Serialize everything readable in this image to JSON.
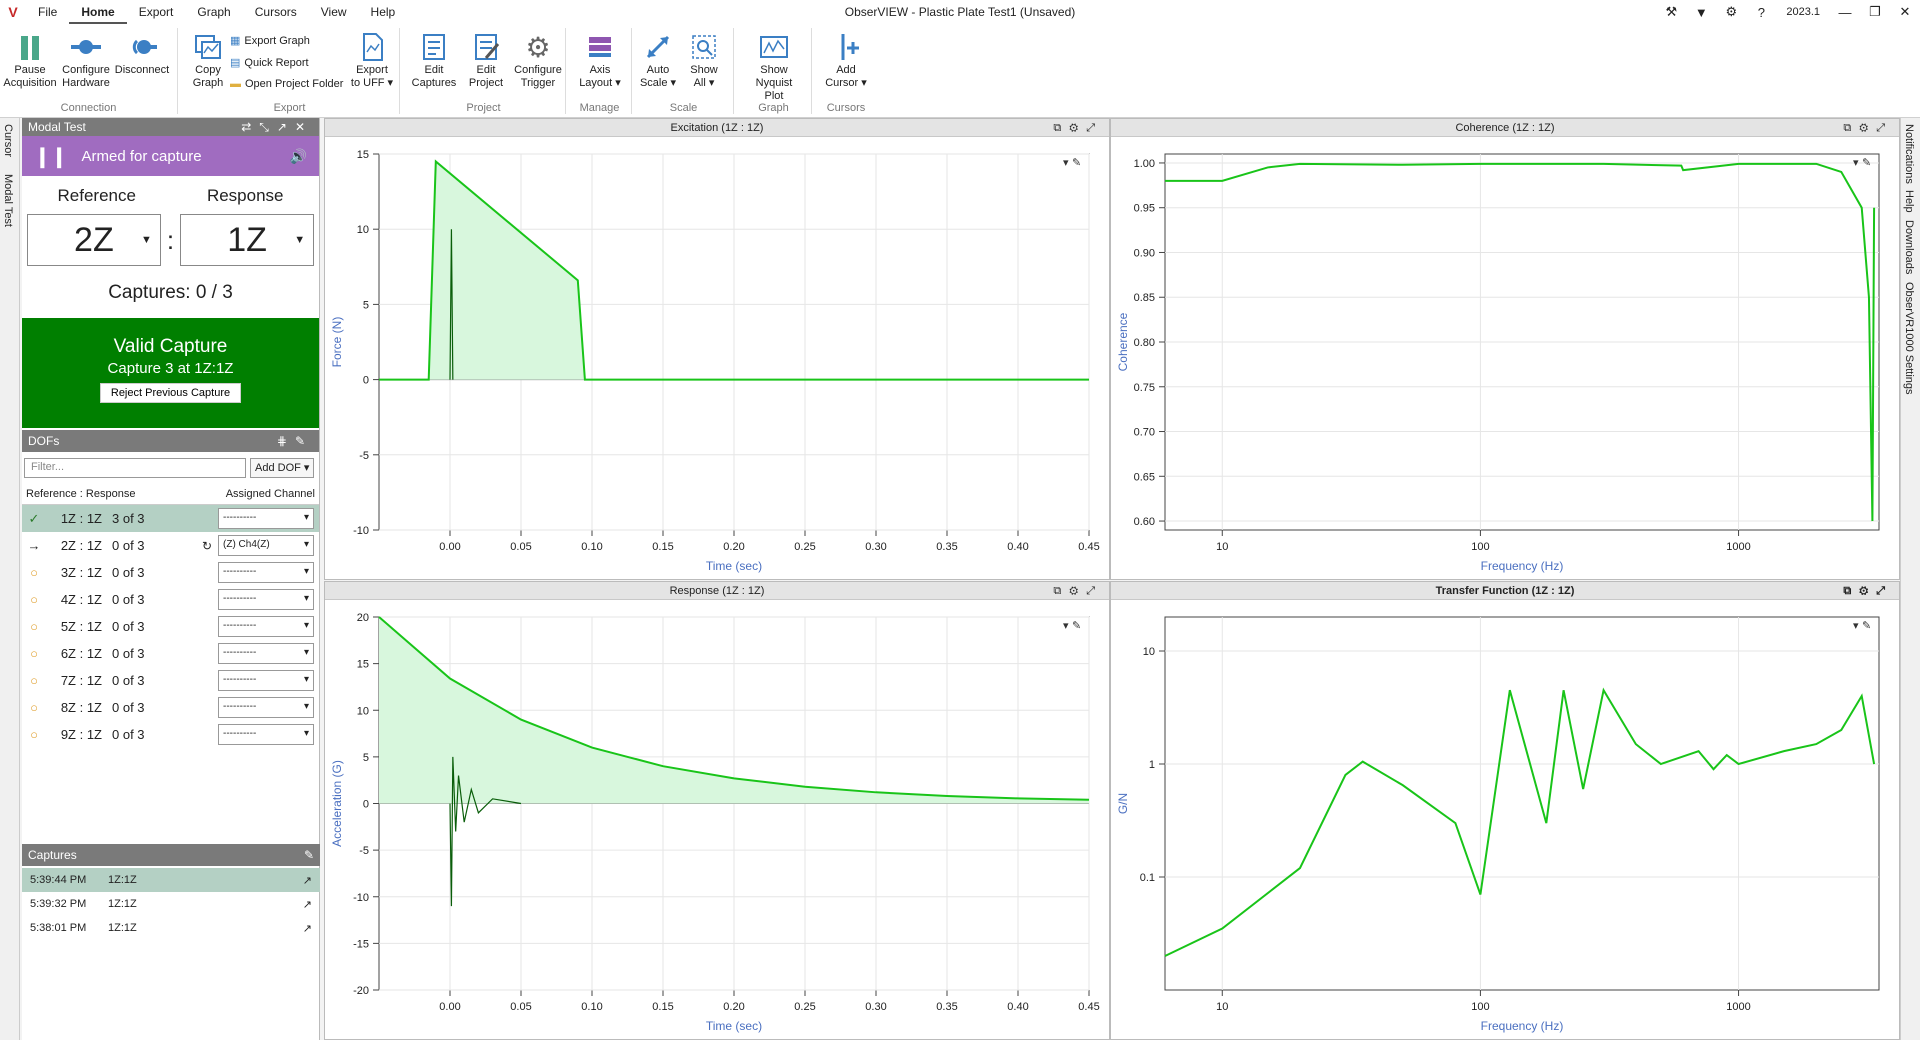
{
  "titlebar": {
    "logo": "V",
    "menus": [
      "File",
      "Home",
      "Export",
      "Graph",
      "Cursors",
      "View",
      "Help"
    ],
    "active_menu": "Home",
    "title": "ObserVIEW - Plastic Plate Test1 (Unsaved)",
    "version": "2023.1"
  },
  "ribbon": {
    "groups": [
      {
        "title": "Connection",
        "buttons": [
          "Pause\nAcquisition",
          "Configure\nHardware",
          "Disconnect"
        ]
      },
      {
        "title": "Export",
        "buttons": [
          "Copy\nGraph"
        ],
        "small": [
          "Export Graph",
          "Quick Report",
          "Open Project Folder"
        ],
        "extra": "Export\nto UFF ▾"
      },
      {
        "title": "Project",
        "buttons": [
          "Edit\nCaptures",
          "Edit\nProject",
          "Configure\nTrigger"
        ]
      },
      {
        "title": "Manage",
        "buttons": [
          "Axis\nLayout ▾"
        ]
      },
      {
        "title": "Scale",
        "buttons": [
          "Auto\nScale ▾",
          "Show\nAll ▾"
        ]
      },
      {
        "title": "Graph",
        "buttons": [
          "Show\nNyquist Plot"
        ]
      },
      {
        "title": "Cursors",
        "buttons": [
          "Add\nCursor ▾"
        ]
      }
    ]
  },
  "left_tabs": [
    "Cursor",
    "Modal Test"
  ],
  "right_tabs": [
    "Notifications",
    "Help",
    "Downloads",
    "ObserVR1000 Settings"
  ],
  "modal": {
    "title": "Modal Test",
    "armed": "Armed for capture",
    "reference_label": "Reference",
    "response_label": "Response",
    "reference": "2Z",
    "response": "1Z",
    "captures": "Captures: 0 / 3",
    "valid_title": "Valid Capture",
    "valid_sub": "Capture 3 at 1Z:1Z",
    "reject": "Reject Previous Capture"
  },
  "dofs": {
    "title": "DOFs",
    "filter_placeholder": "Filter...",
    "add_dof": "Add DOF ▾",
    "col_ref": "Reference : Response",
    "col_ch": "Assigned Channel",
    "rows": [
      {
        "icon": "✓",
        "name": "1Z : 1Z",
        "count": "3 of 3",
        "channel": "----------",
        "selected": true
      },
      {
        "icon": "→",
        "name": "2Z : 1Z",
        "count": "0 of 3",
        "channel": "(Z) Ch4(Z)",
        "rotate": true
      },
      {
        "icon": "○",
        "name": "3Z : 1Z",
        "count": "0 of 3",
        "channel": "----------"
      },
      {
        "icon": "○",
        "name": "4Z : 1Z",
        "count": "0 of 3",
        "channel": "----------"
      },
      {
        "icon": "○",
        "name": "5Z : 1Z",
        "count": "0 of 3",
        "channel": "----------"
      },
      {
        "icon": "○",
        "name": "6Z : 1Z",
        "count": "0 of 3",
        "channel": "----------"
      },
      {
        "icon": "○",
        "name": "7Z : 1Z",
        "count": "0 of 3",
        "channel": "----------"
      },
      {
        "icon": "○",
        "name": "8Z : 1Z",
        "count": "0 of 3",
        "channel": "----------"
      },
      {
        "icon": "○",
        "name": "9Z : 1Z",
        "count": "0 of 3",
        "channel": "----------"
      }
    ]
  },
  "captures_list": {
    "title": "Captures",
    "rows": [
      {
        "time": "5:39:44 PM",
        "name": "1Z:1Z",
        "selected": true
      },
      {
        "time": "5:39:32 PM",
        "name": "1Z:1Z"
      },
      {
        "time": "5:38:01 PM",
        "name": "1Z:1Z"
      }
    ]
  },
  "chart_data": [
    {
      "type": "line",
      "title": "Excitation (1Z : 1Z)",
      "xlabel": "Time (sec)",
      "ylabel": "Force (N)",
      "xlim": [
        -0.05,
        0.45
      ],
      "ylim": [
        -10,
        15
      ],
      "xticks": [
        "0.00",
        "0.05",
        "0.10",
        "0.15",
        "0.20",
        "0.25",
        "0.30",
        "0.35",
        "0.40",
        "0.45"
      ],
      "yticks": [
        "15",
        "10",
        "5",
        "0",
        "-5",
        "-10"
      ],
      "series": [
        {
          "x": [
            -0.05,
            -0.015,
            -0.01,
            0.09,
            0.095,
            0.45
          ],
          "y": [
            0,
            0,
            14.5,
            6.6,
            0,
            0
          ],
          "fill": true
        },
        {
          "x": [
            0.0,
            0.001,
            0.002
          ],
          "y": [
            0,
            10,
            0
          ]
        }
      ]
    },
    {
      "type": "line",
      "title": "Coherence (1Z : 1Z)",
      "xlabel": "Frequency (Hz)",
      "ylabel": "Coherence",
      "xscale": "log",
      "xlim": [
        6,
        3500
      ],
      "ylim": [
        0.59,
        1.01
      ],
      "xticks": [
        "10",
        "100",
        "1000"
      ],
      "yticks": [
        "1.00",
        "0.95",
        "0.90",
        "0.85",
        "0.80",
        "0.75",
        "0.70",
        "0.65",
        "0.60"
      ],
      "series": [
        {
          "x": [
            6,
            10,
            15,
            20,
            50,
            100,
            300,
            600,
            610,
            1000,
            2000,
            2500,
            3000,
            3200,
            3300,
            3350
          ],
          "y": [
            0.98,
            0.98,
            0.995,
            0.999,
            0.998,
            0.999,
            0.999,
            0.997,
            0.992,
            0.999,
            0.999,
            0.99,
            0.95,
            0.85,
            0.6,
            0.95
          ]
        }
      ]
    },
    {
      "type": "line",
      "title": "Response (1Z : 1Z)",
      "xlabel": "Time (sec)",
      "ylabel": "Acceleration (G)",
      "xlim": [
        -0.05,
        0.45
      ],
      "ylim": [
        -20,
        20
      ],
      "xticks": [
        "0.00",
        "0.05",
        "0.10",
        "0.15",
        "0.20",
        "0.25",
        "0.30",
        "0.35",
        "0.40",
        "0.45"
      ],
      "yticks": [
        "20",
        "15",
        "10",
        "5",
        "0",
        "-5",
        "-10",
        "-15",
        "-20"
      ],
      "series": [
        {
          "x": [
            -0.05,
            0.0,
            0.05,
            0.1,
            0.15,
            0.2,
            0.25,
            0.3,
            0.35,
            0.4,
            0.45
          ],
          "y": [
            20,
            13.4,
            9.0,
            6.0,
            4.0,
            2.7,
            1.8,
            1.2,
            0.8,
            0.55,
            0.4
          ],
          "fill": true
        },
        {
          "x": [
            0.0,
            0.001,
            0.002,
            0.004,
            0.006,
            0.01,
            0.015,
            0.02,
            0.03,
            0.05
          ],
          "y": [
            0,
            -11,
            5,
            -3,
            3,
            -2,
            1.5,
            -1,
            0.5,
            0
          ]
        }
      ]
    },
    {
      "type": "line",
      "title": "Transfer Function (1Z : 1Z)",
      "xlabel": "Frequency (Hz)",
      "ylabel": "G/N",
      "xscale": "log",
      "yscale": "log",
      "xlim": [
        6,
        3500
      ],
      "ylim": [
        0.01,
        20
      ],
      "xticks": [
        "10",
        "100",
        "1000"
      ],
      "yticks": [
        "10",
        "1",
        "0.1"
      ],
      "series": [
        {
          "x": [
            6,
            10,
            20,
            30,
            35,
            50,
            80,
            100,
            130,
            180,
            210,
            250,
            300,
            400,
            500,
            700,
            800,
            900,
            1000,
            1500,
            2000,
            2500,
            3000,
            3350
          ],
          "y": [
            0.02,
            0.035,
            0.12,
            0.8,
            1.05,
            0.65,
            0.3,
            0.07,
            4.5,
            0.3,
            4.5,
            0.6,
            4.5,
            1.5,
            1.0,
            1.3,
            0.9,
            1.2,
            1.0,
            1.3,
            1.5,
            2.0,
            4.0,
            1.0
          ]
        }
      ]
    }
  ],
  "colors": {
    "accent": "#a06cc0",
    "valid": "#007f00",
    "line": "#19c419",
    "line_dark": "#0a5e0a",
    "fill": "#d8f7dd",
    "axis_label": "#4a6fc0"
  }
}
